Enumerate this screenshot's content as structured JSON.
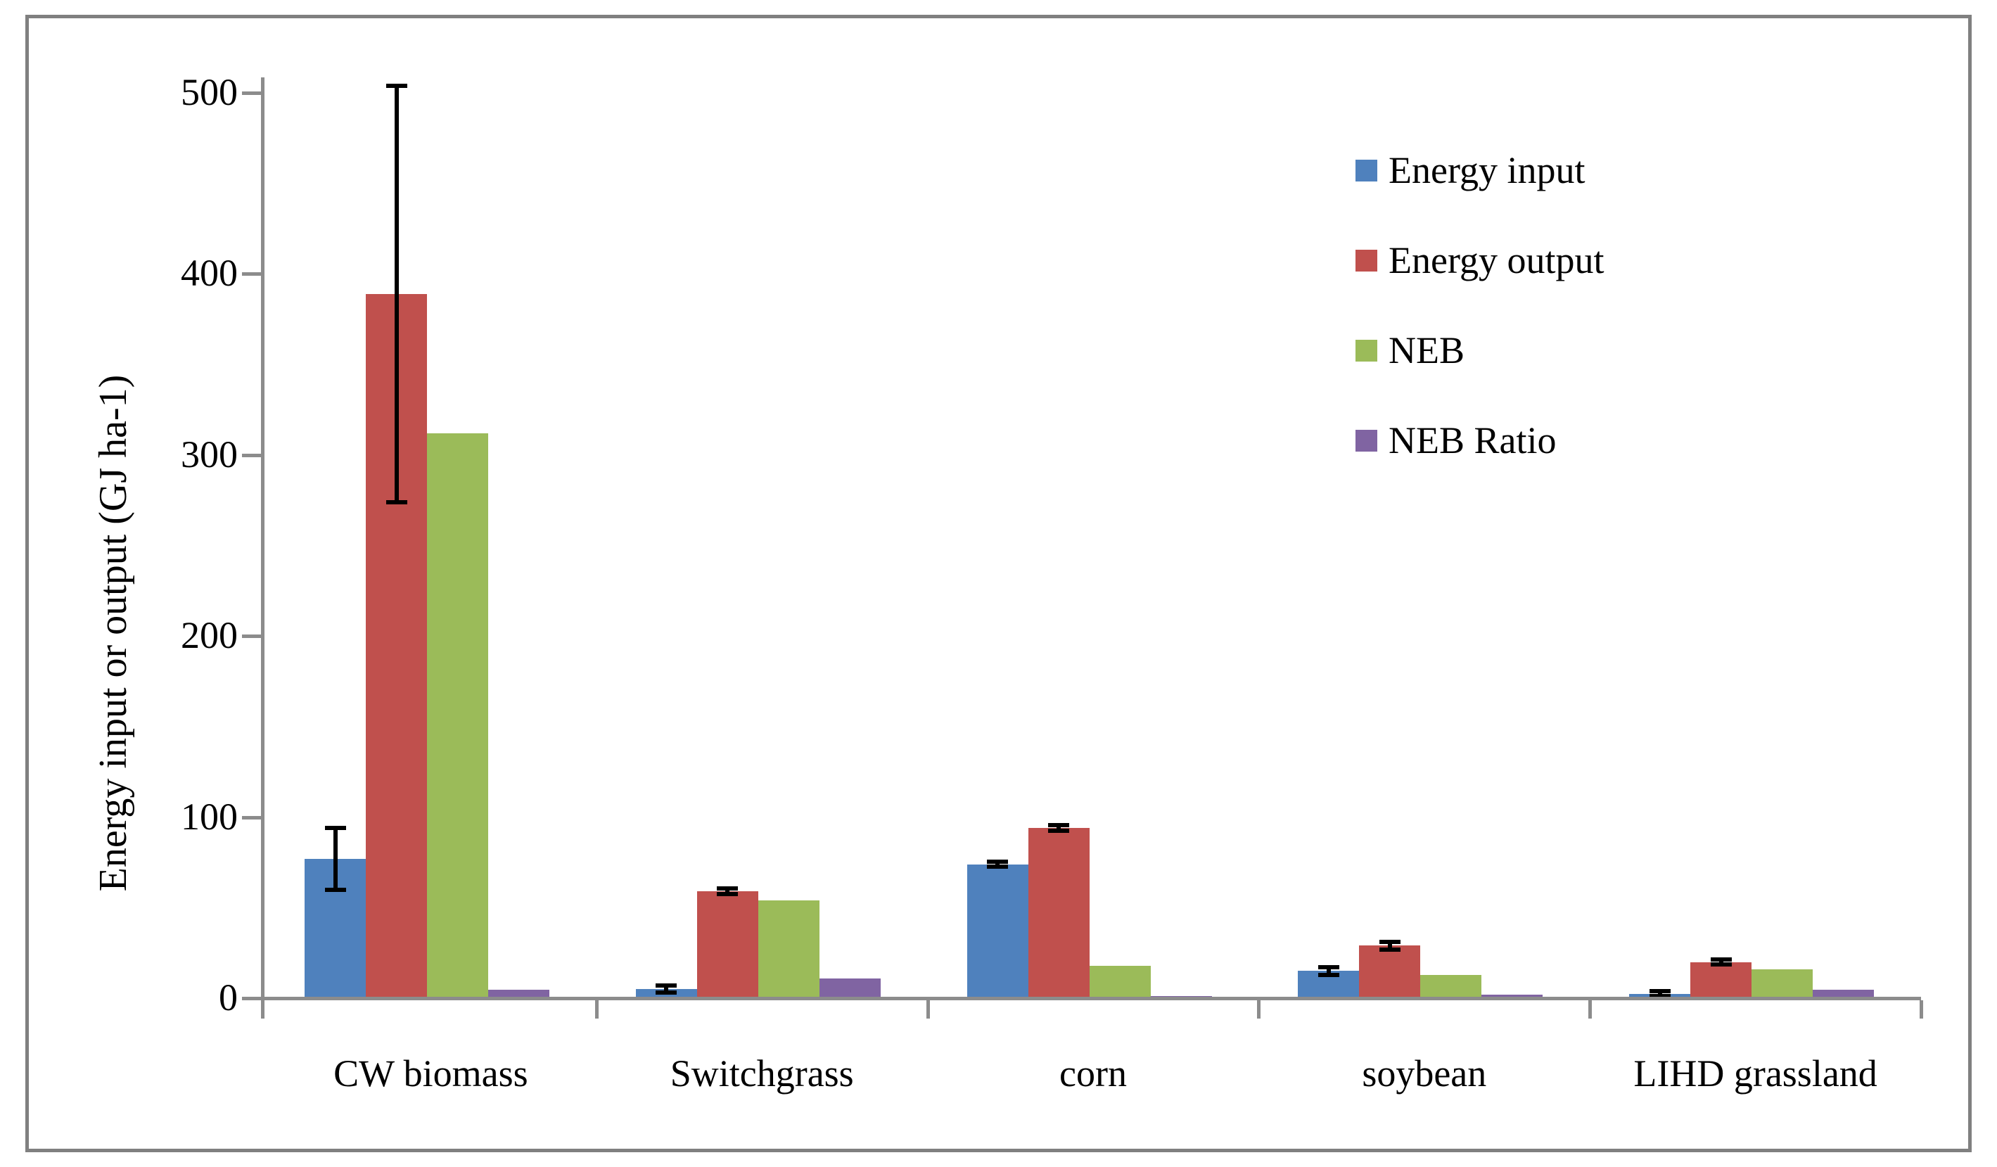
{
  "chart_data": {
    "type": "bar",
    "title": "",
    "xlabel": "",
    "ylabel": "Energy input or output (GJ ha-1)",
    "categories": [
      "CW biomass",
      "Switchgrass",
      "corn",
      "soybean",
      "LIHD grassland"
    ],
    "series": [
      {
        "name": "Energy input",
        "color": "#4F81BD",
        "values": [
          77,
          5,
          74,
          15,
          2.5
        ],
        "errors": [
          17,
          2,
          1.5,
          2,
          1.5
        ]
      },
      {
        "name": "Energy output",
        "color": "#C0504D",
        "values": [
          389,
          59,
          94,
          29,
          20
        ],
        "errors": [
          115,
          1.5,
          1.5,
          2,
          1.5
        ]
      },
      {
        "name": "NEB",
        "color": "#9BBB59",
        "values": [
          312,
          54,
          18,
          13,
          16
        ],
        "errors": [
          0,
          0,
          0,
          0,
          0
        ]
      },
      {
        "name": "NEB Ratio",
        "color": "#8064A2",
        "values": [
          4.5,
          11,
          1.3,
          1.9,
          4.5
        ],
        "errors": [
          0,
          0,
          0,
          0,
          0
        ]
      }
    ],
    "ylim": [
      0,
      500
    ],
    "y_tick_interval": 100,
    "y_tick_labels": [
      "0",
      "100",
      "200",
      "300",
      "400",
      "500"
    ],
    "grid": false,
    "legend_position": "upper right",
    "error_bars": true,
    "error_bar_color": "#000000",
    "axis_color": "#8C8C8C",
    "frame_color": "#808080"
  }
}
